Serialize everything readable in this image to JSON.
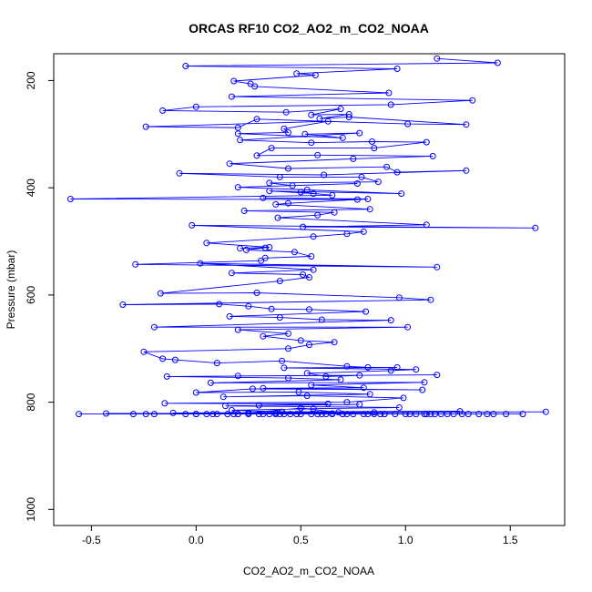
{
  "chart_data": {
    "type": "scatter",
    "title": "ORCAS RF10 CO2_AO2_m_CO2_NOAA",
    "xlabel": "CO2_AO2_m_CO2_NOAA",
    "ylabel": "Pressure (mbar)",
    "xlim": [
      -0.68,
      1.76
    ],
    "ylim": [
      1030,
      150
    ],
    "y_reversed": true,
    "x_ticks": [
      -0.5,
      0.0,
      0.5,
      1.0,
      1.5
    ],
    "x_tick_labels": [
      "-0.5",
      "0.0",
      "0.5",
      "1.0",
      "1.5"
    ],
    "y_ticks": [
      200,
      400,
      600,
      800,
      1000
    ],
    "y_tick_labels": [
      "200",
      "400",
      "600",
      "800",
      "1000"
    ],
    "grid": false,
    "legend": "none",
    "marker": "open-circle",
    "connected_line": true,
    "color": "#0000ff",
    "series": [
      {
        "x": [
          1.15,
          1.44,
          -0.05,
          0.96,
          0.48,
          0.57,
          0.18,
          0.26,
          0.28,
          0.92,
          0.17,
          1.32,
          0.93,
          0.0,
          -0.16,
          0.43,
          0.69,
          0.55,
          0.73,
          0.59,
          0.73,
          1.29,
          1.01,
          0.29,
          0.2,
          -0.24,
          0.63,
          0.42,
          0.44,
          0.2,
          0.7,
          0.52,
          0.78,
          0.21,
          0.55,
          0.84,
          1.1,
          0.85,
          0.36,
          0.29,
          0.58,
          1.13,
          0.75,
          0.16,
          0.44,
          0.91,
          0.96,
          1.29,
          0.61,
          -0.08,
          0.4,
          0.79,
          0.87,
          0.35,
          0.46,
          0.77,
          0.2,
          0.53,
          0.98,
          0.35,
          0.56,
          0.5,
          0.65,
          -0.6,
          0.77,
          0.32,
          0.82,
          0.44,
          0.38,
          0.83,
          0.23,
          0.66,
          0.58,
          0.39,
          1.1,
          0.51,
          1.62,
          -0.02,
          0.8,
          0.72,
          0.56,
          0.05,
          0.35,
          0.21,
          0.33,
          0.24,
          0.47,
          0.55,
          0.33,
          0.31,
          -0.29,
          1.15,
          0.02,
          0.56,
          0.17,
          0.51,
          0.54,
          0.4,
          -0.17,
          0.29,
          0.97,
          1.12,
          -0.35,
          0.11,
          0.25,
          0.36,
          0.54,
          0.81,
          0.16,
          0.4,
          0.6,
          0.93,
          -0.2,
          1.01,
          0.2,
          0.44,
          0.32,
          0.5,
          0.66,
          0.54,
          0.44,
          -0.25,
          -0.16,
          -0.1,
          0.1,
          0.41,
          0.72,
          0.82,
          0.96,
          0.42,
          1.05,
          0.93,
          0.53,
          0.62,
          0.78,
          0.2,
          1.15,
          -0.14,
          0.44,
          0.69,
          0.07,
          1.09,
          0.55,
          0.8,
          0.32,
          1.08,
          0.27,
          0.0,
          0.49,
          0.83,
          0.13,
          0.53,
          0.99,
          0.72,
          -0.15,
          0.63,
          0.3,
          0.78,
          0.14,
          0.97,
          0.56,
          0.17,
          0.41,
          1.26,
          0.68,
          0.5,
          0.25,
          -0.11,
          0.85,
          1.67,
          -0.43,
          0.38,
          1.09,
          -0.3,
          0.65,
          1.14,
          -0.56,
          1.23,
          -0.24,
          1.56,
          0.2,
          1.3,
          0.0,
          1.39,
          0.3,
          1.42,
          0.5,
          1.35,
          0.1,
          1.2,
          -0.2,
          1.1,
          0.4,
          1.0,
          0.0,
          0.9,
          0.6,
          0.8,
          0.2,
          0.7,
          0.9,
          0.65,
          0.35,
          0.85,
          1.48,
          0.45,
          0.05,
          0.75,
          0.25,
          0.95,
          0.55,
          1.17,
          -0.05,
          0.62,
          1.05,
          0.15,
          0.7,
          0.38,
          0.88,
          0.48,
          1.27,
          0.08,
          0.58,
          1.12,
          0.32,
          0.72,
          0.18,
          0.82,
          0.42,
          1.02
        ],
        "y": [
          159,
          167,
          173,
          178,
          187,
          190,
          201,
          206,
          211,
          223,
          230,
          237,
          245,
          249,
          256,
          259,
          253,
          264,
          263,
          271,
          268,
          282,
          281,
          272,
          288,
          286,
          276,
          290,
          297,
          299,
          307,
          300,
          298,
          311,
          316,
          314,
          315,
          326,
          326,
          340,
          339,
          341,
          346,
          355,
          364,
          361,
          371,
          368,
          376,
          373,
          380,
          380,
          389,
          391,
          396,
          392,
          399,
          404,
          411,
          406,
          411,
          408,
          414,
          421,
          422,
          419,
          421,
          429,
          431,
          440,
          443,
          446,
          451,
          456,
          469,
          473,
          475,
          470,
          482,
          486,
          491,
          503,
          511,
          513,
          512,
          516,
          520,
          528,
          531,
          536,
          543,
          548,
          541,
          553,
          559,
          562,
          567,
          574,
          597,
          596,
          605,
          609,
          618,
          617,
          621,
          626,
          627,
          631,
          640,
          642,
          646,
          647,
          660,
          660,
          665,
          672,
          677,
          685,
          688,
          693,
          700,
          706,
          719,
          721,
          727,
          723,
          733,
          735,
          735,
          736,
          739,
          741,
          746,
          752,
          750,
          751,
          749,
          752,
          755,
          758,
          764,
          763,
          768,
          773,
          774,
          777,
          775,
          782,
          781,
          785,
          790,
          788,
          792,
          800,
          802,
          803,
          806,
          804,
          807,
          810,
          812,
          815,
          818,
          817,
          819,
          811,
          820,
          820,
          819,
          818,
          821,
          820,
          822,
          822,
          821,
          822,
          822,
          822,
          822,
          822,
          822,
          822,
          822,
          822,
          822,
          822,
          822,
          822,
          822,
          822,
          822,
          822,
          822,
          822,
          822,
          822,
          822,
          822,
          822,
          822,
          822,
          822,
          822,
          822,
          822,
          822,
          822,
          822,
          822,
          822,
          822,
          822,
          822,
          822,
          822,
          822,
          822,
          822,
          822,
          822,
          822,
          822,
          822,
          822,
          822,
          822,
          822,
          822,
          822,
          822
        ]
      }
    ]
  }
}
